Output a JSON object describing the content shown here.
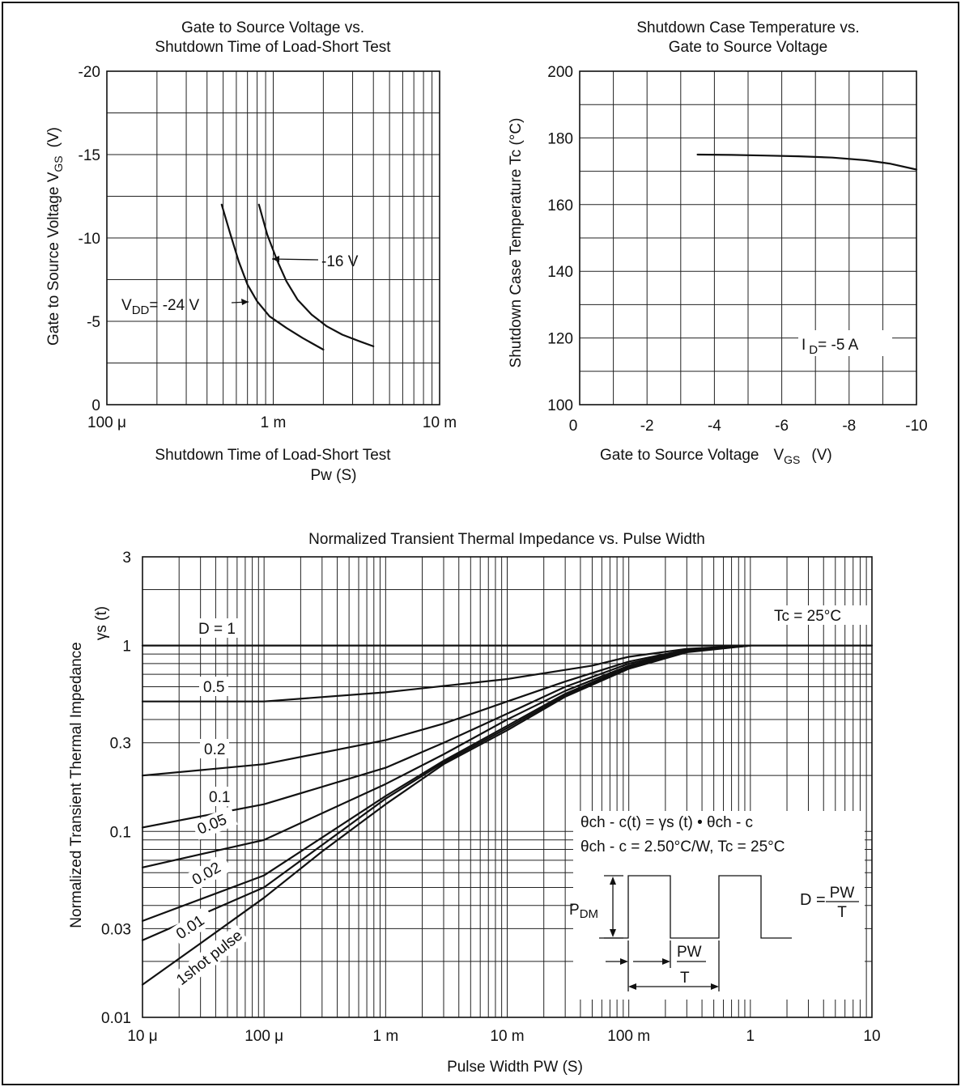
{
  "chart_data": [
    {
      "type": "line",
      "title": [
        "Gate to Source Voltage vs.",
        "Shutdown Time of Load-Short Test"
      ],
      "xlabel": [
        "Shutdown Time of Load-Short Test",
        "Pw  (S)"
      ],
      "ylabel": "Gate to Source Voltage   V",
      "ylabel_sub": "GS",
      "ylabel_unit": "(V)",
      "xscale": "log",
      "xlim": [
        0.0001,
        0.01
      ],
      "ylim": [
        0,
        -20
      ],
      "x_ticks": [
        {
          "v": 0.0001,
          "label": "100 μ"
        },
        {
          "v": 0.001,
          "label": "1 m"
        },
        {
          "v": 0.01,
          "label": "10 m"
        }
      ],
      "y_ticks": [
        {
          "v": 0,
          "label": "0"
        },
        {
          "v": -5,
          "label": "-5"
        },
        {
          "v": -10,
          "label": "-10"
        },
        {
          "v": -15,
          "label": "-15"
        },
        {
          "v": -20,
          "label": "-20"
        }
      ],
      "grid": true,
      "series": [
        {
          "name": "VDD= -24 V",
          "x": [
            0.00049,
            0.00055,
            0.00062,
            0.0007,
            0.0008,
            0.00095,
            0.0012,
            0.0015,
            0.002
          ],
          "y": [
            -12,
            -10.3,
            -8.6,
            -7.2,
            -6.2,
            -5.3,
            -4.6,
            -4,
            -3.3
          ]
        },
        {
          "name": "-16 V",
          "x": [
            0.00082,
            0.00092,
            0.00105,
            0.0012,
            0.0014,
            0.0017,
            0.0021,
            0.0026,
            0.0033,
            0.004
          ],
          "y": [
            -12,
            -10.2,
            -8.7,
            -7.4,
            -6.3,
            -5.4,
            -4.7,
            -4.2,
            -3.8,
            -3.5
          ]
        }
      ],
      "annotations": {
        "vdd_prefix": "V",
        "vdd_sub": "DD",
        "vdd_rest": "= -24 V",
        "v16": "-16 V"
      }
    },
    {
      "type": "line",
      "title": [
        "Shutdown Case Temperature vs.",
        "Gate to Source Voltage"
      ],
      "xlabel": "Gate to Source Voltage",
      "xlabel_sym": "V",
      "xlabel_sub": "GS",
      "xlabel_unit": "(V)",
      "ylabel": "Shutdown Case Temperature   Tc  (°C)",
      "xlim": [
        0,
        -10
      ],
      "ylim": [
        100,
        200
      ],
      "x_ticks": [
        {
          "v": 0,
          "label": "0"
        },
        {
          "v": -2,
          "label": "-2"
        },
        {
          "v": -4,
          "label": "-4"
        },
        {
          "v": -6,
          "label": "-6"
        },
        {
          "v": -8,
          "label": "-8"
        },
        {
          "v": -10,
          "label": "-10"
        }
      ],
      "y_ticks": [
        {
          "v": 100,
          "label": "100"
        },
        {
          "v": 120,
          "label": "120"
        },
        {
          "v": 140,
          "label": "140"
        },
        {
          "v": 160,
          "label": "160"
        },
        {
          "v": 180,
          "label": "180"
        },
        {
          "v": 200,
          "label": "200"
        }
      ],
      "grid": true,
      "series": [
        {
          "name": "I D = -5 A",
          "x": [
            -3.5,
            -4.5,
            -5.5,
            -6.5,
            -7.5,
            -8.5,
            -9.2,
            -10
          ],
          "y": [
            175,
            174.9,
            174.7,
            174.5,
            174.1,
            173.3,
            172.3,
            170.5
          ]
        }
      ],
      "annotations": {
        "id_prefix": "I",
        "id_sub": "D",
        "id_rest": "= -5 A"
      }
    },
    {
      "type": "line",
      "title": "Normalized Transient Thermal Impedance vs. Pulse Width",
      "xlabel": "Pulse Width  PW    (S)",
      "ylabel_line1": "Normalized Transient Thermal Impedance",
      "ylabel_line2": "γs  (t)",
      "xscale": "log",
      "yscale": "log",
      "xlim": [
        1e-05,
        10
      ],
      "ylim": [
        0.01,
        3
      ],
      "x_ticks": [
        {
          "v": 1e-05,
          "label": "10 μ"
        },
        {
          "v": 0.0001,
          "label": "100 μ"
        },
        {
          "v": 0.001,
          "label": "1 m"
        },
        {
          "v": 0.01,
          "label": "10 m"
        },
        {
          "v": 0.1,
          "label": "100 m"
        },
        {
          "v": 1,
          "label": "1"
        },
        {
          "v": 10,
          "label": "10"
        }
      ],
      "y_ticks": [
        {
          "v": 0.01,
          "label": "0.01"
        },
        {
          "v": 0.03,
          "label": "0.03"
        },
        {
          "v": 0.1,
          "label": "0.1"
        },
        {
          "v": 0.3,
          "label": "0.3"
        },
        {
          "v": 1,
          "label": "1"
        },
        {
          "v": 3,
          "label": "3"
        }
      ],
      "grid": true,
      "series": [
        {
          "name": "D = 1",
          "x": [
            1e-05,
            10
          ],
          "y": [
            1,
            1
          ]
        },
        {
          "name": "0.5",
          "x": [
            1e-05,
            0.0001,
            0.001,
            0.01,
            0.05,
            0.1,
            0.3,
            1
          ],
          "y": [
            0.5,
            0.5,
            0.56,
            0.66,
            0.78,
            0.87,
            0.96,
            1
          ]
        },
        {
          "name": "0.2",
          "x": [
            1e-05,
            0.0001,
            0.001,
            0.003,
            0.01,
            0.03,
            0.1,
            0.3,
            1
          ],
          "y": [
            0.2,
            0.23,
            0.31,
            0.38,
            0.5,
            0.64,
            0.82,
            0.95,
            1
          ]
        },
        {
          "name": "0.1",
          "x": [
            1e-05,
            0.0001,
            0.001,
            0.003,
            0.01,
            0.03,
            0.1,
            0.3,
            1
          ],
          "y": [
            0.105,
            0.14,
            0.22,
            0.3,
            0.43,
            0.6,
            0.8,
            0.94,
            1
          ]
        },
        {
          "name": "0.05",
          "x": [
            1e-05,
            0.0001,
            0.001,
            0.003,
            0.01,
            0.03,
            0.1,
            0.3,
            1
          ],
          "y": [
            0.064,
            0.09,
            0.18,
            0.26,
            0.4,
            0.57,
            0.78,
            0.94,
            1
          ]
        },
        {
          "name": "0.02",
          "x": [
            1e-05,
            0.0001,
            0.001,
            0.003,
            0.01,
            0.03,
            0.1,
            0.3,
            1
          ],
          "y": [
            0.033,
            0.058,
            0.155,
            0.24,
            0.37,
            0.55,
            0.77,
            0.93,
            1
          ]
        },
        {
          "name": "0.01",
          "x": [
            1e-05,
            0.0001,
            0.001,
            0.003,
            0.01,
            0.03,
            0.1,
            0.3,
            1
          ],
          "y": [
            0.026,
            0.05,
            0.15,
            0.235,
            0.36,
            0.54,
            0.76,
            0.93,
            1
          ]
        },
        {
          "name": "1shot pulse",
          "x": [
            1e-05,
            3e-05,
            0.0001,
            0.0003,
            0.001,
            0.003,
            0.01,
            0.03,
            0.1,
            0.3,
            1
          ],
          "y": [
            0.015,
            0.025,
            0.044,
            0.078,
            0.14,
            0.23,
            0.35,
            0.53,
            0.75,
            0.92,
            1
          ]
        }
      ],
      "labels": {
        "d1": "D = 1",
        "d05": "0.5",
        "d02": "0.2",
        "d01": "0.1",
        "d005": "0.05",
        "d002": "0.02",
        "d001": "0.01",
        "single": "1shot pulse",
        "tc": "Tc = 25°C"
      },
      "inset": {
        "eq1": "θch - c(t) = γs (t) • θch - c",
        "eq2": "θch - c = 2.50°C/W, Tc = 25°C",
        "pdm_prefix": "P",
        "pdm_sub": "DM",
        "d_eq": "D =",
        "d_num": "PW",
        "d_den": "T",
        "pw": "PW",
        "t": "T"
      }
    }
  ]
}
